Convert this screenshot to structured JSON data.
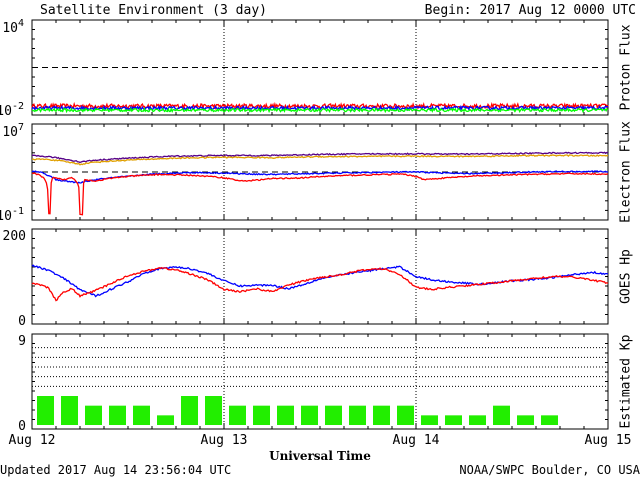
{
  "header": {
    "title": "Satellite Environment (3 day)",
    "begin": "Begin:  2017 Aug 12 0000 UTC"
  },
  "footer": {
    "updated": "Updated 2017 Aug 14 23:56:04 UTC",
    "credit": "NOAA/SWPC Boulder, CO USA"
  },
  "colors": {
    "red": "#ff0000",
    "blue": "#0000ff",
    "green": "#00ff00",
    "orange": "#e0a000",
    "purple": "#550088",
    "bar": "#22ee00",
    "panel_border": "#000000"
  },
  "chart_data": [
    {
      "type": "line",
      "name": "proton-flux",
      "ylabel": "Proton Flux",
      "yscale": "log",
      "ylim": [
        0.01,
        10000
      ],
      "tick_labels": {
        "top_mant": "10",
        "top_exp": "4",
        "bottom_mant": "10",
        "bottom_exp": "-2"
      },
      "threshold": 10,
      "x_hours": [
        0,
        72
      ],
      "series": [
        {
          "color": "red",
          "base": 0.022,
          "jitter": 0.28
        },
        {
          "color": "blue",
          "base": 0.016,
          "jitter": 0.22
        },
        {
          "color": "green",
          "base": 0.0115,
          "jitter": 0.2
        }
      ]
    },
    {
      "type": "line",
      "name": "electron-flux",
      "ylabel": "Electron Flux",
      "yscale": "log",
      "ylim": [
        0.1,
        10000000
      ],
      "tick_labels": {
        "top_mant": "10",
        "top_exp": "7",
        "bottom_mant": "10",
        "bottom_exp": "-1"
      },
      "threshold": 1000,
      "series": [
        {
          "color": "purple",
          "points": [
            [
              0,
              30000
            ],
            [
              2,
              25000
            ],
            [
              4,
              15000
            ],
            [
              6,
              8000
            ],
            [
              8,
              12000
            ],
            [
              12,
              18000
            ],
            [
              18,
              28000
            ],
            [
              24,
              32000
            ],
            [
              30,
              32000
            ],
            [
              36,
              40000
            ],
            [
              42,
              45000
            ],
            [
              48,
              45000
            ],
            [
              54,
              42000
            ],
            [
              60,
              48000
            ],
            [
              66,
              55000
            ],
            [
              72,
              55000
            ]
          ]
        },
        {
          "color": "orange",
          "points": [
            [
              0,
              15000
            ],
            [
              2,
              14000
            ],
            [
              4,
              9000
            ],
            [
              6,
              5000
            ],
            [
              8,
              8000
            ],
            [
              12,
              12000
            ],
            [
              18,
              18000
            ],
            [
              24,
              22000
            ],
            [
              30,
              20000
            ],
            [
              36,
              25000
            ],
            [
              42,
              26000
            ],
            [
              48,
              28000
            ],
            [
              54,
              26000
            ],
            [
              60,
              30000
            ],
            [
              66,
              32000
            ],
            [
              72,
              30000
            ]
          ]
        },
        {
          "color": "blue",
          "points": [
            [
              0,
              1200
            ],
            [
              1,
              1000
            ],
            [
              2,
              500
            ],
            [
              3,
              200
            ],
            [
              4,
              150
            ],
            [
              6,
              100
            ],
            [
              8,
              200
            ],
            [
              12,
              400
            ],
            [
              16,
              700
            ],
            [
              20,
              900
            ],
            [
              24,
              800
            ],
            [
              26,
              700
            ],
            [
              30,
              600
            ],
            [
              34,
              700
            ],
            [
              38,
              800
            ],
            [
              42,
              900
            ],
            [
              46,
              1000
            ],
            [
              48,
              1000
            ],
            [
              50,
              900
            ],
            [
              54,
              700
            ],
            [
              58,
              800
            ],
            [
              62,
              1000
            ],
            [
              66,
              1100
            ],
            [
              70,
              1100
            ],
            [
              72,
              1100
            ]
          ]
        },
        {
          "color": "red",
          "points": [
            [
              0,
              800
            ],
            [
              1,
              500
            ],
            [
              2,
              0.15
            ],
            [
              2.3,
              0.15
            ],
            [
              2.6,
              300
            ],
            [
              4,
              200
            ],
            [
              5,
              300
            ],
            [
              6,
              0.15
            ],
            [
              6.3,
              0.15
            ],
            [
              6.6,
              200
            ],
            [
              8,
              150
            ],
            [
              12,
              400
            ],
            [
              16,
              600
            ],
            [
              20,
              500
            ],
            [
              24,
              300
            ],
            [
              26,
              150
            ],
            [
              28,
              180
            ],
            [
              30,
              250
            ],
            [
              34,
              300
            ],
            [
              38,
              450
            ],
            [
              42,
              550
            ],
            [
              46,
              650
            ],
            [
              48,
              400
            ],
            [
              49,
              200
            ],
            [
              52,
              300
            ],
            [
              56,
              450
            ],
            [
              60,
              550
            ],
            [
              64,
              650
            ],
            [
              68,
              700
            ],
            [
              72,
              650
            ]
          ]
        }
      ]
    },
    {
      "type": "line",
      "name": "goes-hp",
      "ylabel": "GOES Hp",
      "ylim": [
        0,
        200
      ],
      "y_ticks": [
        "0",
        "200"
      ],
      "series": [
        {
          "color": "blue",
          "points": [
            [
              0,
              125
            ],
            [
              2,
              115
            ],
            [
              4,
              95
            ],
            [
              6,
              70
            ],
            [
              8,
              55
            ],
            [
              10,
              72
            ],
            [
              12,
              88
            ],
            [
              14,
              108
            ],
            [
              16,
              118
            ],
            [
              18,
              122
            ],
            [
              20,
              117
            ],
            [
              22,
              107
            ],
            [
              24,
              90
            ],
            [
              26,
              78
            ],
            [
              28,
              80
            ],
            [
              30,
              80
            ],
            [
              32,
              72
            ],
            [
              34,
              82
            ],
            [
              36,
              95
            ],
            [
              40,
              108
            ],
            [
              44,
              118
            ],
            [
              46,
              122
            ],
            [
              48,
              100
            ],
            [
              50,
              92
            ],
            [
              52,
              88
            ],
            [
              56,
              82
            ],
            [
              60,
              90
            ],
            [
              64,
              95
            ],
            [
              68,
              105
            ],
            [
              70,
              110
            ],
            [
              72,
              105
            ]
          ]
        },
        {
          "color": "red",
          "points": [
            [
              0,
              85
            ],
            [
              2,
              75
            ],
            [
              3,
              45
            ],
            [
              4,
              65
            ],
            [
              5,
              72
            ],
            [
              6,
              55
            ],
            [
              8,
              68
            ],
            [
              10,
              85
            ],
            [
              12,
              102
            ],
            [
              14,
              112
            ],
            [
              16,
              120
            ],
            [
              18,
              115
            ],
            [
              20,
              105
            ],
            [
              22,
              92
            ],
            [
              24,
              70
            ],
            [
              26,
              65
            ],
            [
              28,
              72
            ],
            [
              30,
              65
            ],
            [
              32,
              80
            ],
            [
              34,
              90
            ],
            [
              36,
              98
            ],
            [
              38,
              102
            ],
            [
              40,
              110
            ],
            [
              42,
              116
            ],
            [
              44,
              118
            ],
            [
              46,
              105
            ],
            [
              48,
              75
            ],
            [
              50,
              70
            ],
            [
              52,
              75
            ],
            [
              56,
              82
            ],
            [
              60,
              90
            ],
            [
              64,
              98
            ],
            [
              66,
              100
            ],
            [
              68,
              98
            ],
            [
              70,
              92
            ],
            [
              72,
              85
            ]
          ]
        }
      ]
    },
    {
      "type": "bar",
      "name": "estimated-kp",
      "ylabel": "Estimated Kp",
      "ylim": [
        0,
        9
      ],
      "y_ticks": [
        "0",
        "9"
      ],
      "gridlines": [
        4,
        5,
        6,
        7,
        8
      ],
      "bar_hours": 3,
      "values": [
        3,
        3,
        2,
        2,
        2,
        1,
        3,
        3,
        2,
        2,
        2,
        2,
        2,
        2,
        2,
        2,
        1,
        1,
        1,
        2,
        1,
        1
      ]
    }
  ],
  "x_axis": {
    "label": "Universal Time",
    "ticks": [
      {
        "hour": 0,
        "label": "Aug 12"
      },
      {
        "hour": 24,
        "label": "Aug 13"
      },
      {
        "hour": 48,
        "label": "Aug 14"
      },
      {
        "hour": 72,
        "label": "Aug 15"
      }
    ]
  }
}
